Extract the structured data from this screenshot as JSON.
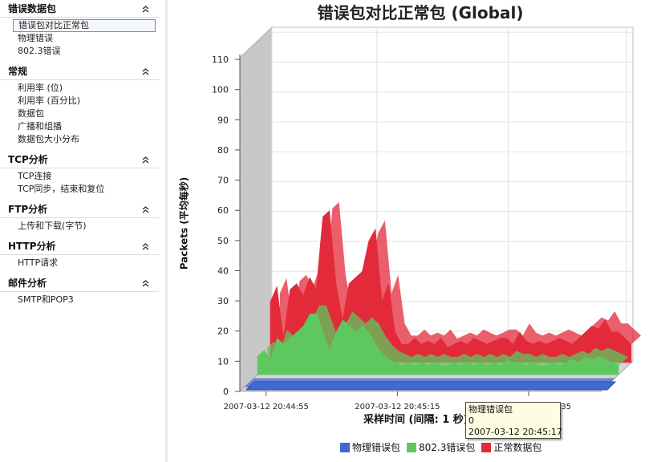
{
  "sidebar": {
    "sections": [
      {
        "title": "错误数据包",
        "items": [
          "错误包对比正常包",
          "物理错误",
          "802.3错误"
        ],
        "selected": 0
      },
      {
        "title": "常规",
        "items": [
          "利用率 (位)",
          "利用率 (百分比)",
          "数据包",
          "广播和组播",
          "数据包大小分布"
        ]
      },
      {
        "title": "TCP分析",
        "items": [
          "TCP连接",
          "TCP同步，结束和复位"
        ]
      },
      {
        "title": "FTP分析",
        "items": [
          "上传和下载(字节)"
        ]
      },
      {
        "title": "HTTP分析",
        "items": [
          "HTTP请求"
        ]
      },
      {
        "title": "邮件分析",
        "items": [
          "SMTP和POP3"
        ]
      }
    ]
  },
  "chart": {
    "title": "错误包对比正常包 (Global)",
    "ylabel": "Packets (平均每秒)",
    "xlabel": "采样时间 (间隔: 1 秒)",
    "legend": [
      "物理错误包",
      "802.3错误包",
      "正常数据包"
    ],
    "tooltip": {
      "series": "物理错误包",
      "value": "0",
      "time": "2007-03-12 20:45:17"
    }
  },
  "colors": {
    "physical": "#4169d2",
    "err8023": "#5ec85e",
    "normal": "#e32a3a",
    "wall": "#c8c8c8",
    "grid": "#c8c8c8"
  },
  "chart_data": {
    "type": "area",
    "title": "错误包对比正常包 (Global)",
    "ylabel": "Packets (平均每秒)",
    "xlabel": "采样时间 (间隔: 1 秒)",
    "ylim": [
      0,
      110
    ],
    "yticks": [
      0,
      10,
      20,
      30,
      40,
      50,
      60,
      70,
      80,
      90,
      100,
      110
    ],
    "x_tick_labels": [
      "2007-03-12 20:44:55",
      "2007-03-12 20:45:15",
      "2007-03-12 20:45:35"
    ],
    "x_tick_index": [
      4,
      24,
      44
    ],
    "grid": true,
    "legend_position": "bottom",
    "series": [
      {
        "name": "物理错误包",
        "values": [
          0,
          0,
          0,
          0,
          0,
          0,
          0,
          0,
          0,
          0,
          0,
          0,
          0,
          0,
          0,
          0,
          0,
          0,
          0,
          0,
          0,
          0,
          0,
          0,
          0,
          0,
          0,
          0,
          0,
          0,
          0,
          0,
          0,
          0,
          0,
          0,
          0,
          0,
          0,
          0,
          0,
          0,
          0,
          0,
          0,
          0,
          0,
          0,
          0,
          0,
          0,
          0,
          0,
          0,
          0,
          0
        ]
      },
      {
        "name": "802.3错误包",
        "values": [
          6,
          8,
          5,
          12,
          10,
          12,
          14,
          16,
          20,
          20,
          14,
          8,
          14,
          18,
          16,
          14,
          16,
          14,
          10,
          7,
          5,
          4,
          3,
          4,
          3,
          4,
          3,
          4,
          3,
          3,
          4,
          3,
          4,
          3,
          4,
          3,
          4,
          3,
          5,
          4,
          4,
          3,
          4,
          3,
          3,
          4,
          3,
          4,
          5,
          4,
          6,
          5,
          6,
          5,
          4,
          3
        ]
      },
      {
        "name": "正常数据包",
        "values": [
          20,
          25,
          8,
          24,
          26,
          22,
          28,
          24,
          48,
          50,
          26,
          14,
          26,
          28,
          30,
          40,
          44,
          20,
          26,
          10,
          6,
          6,
          8,
          6,
          7,
          6,
          8,
          5,
          6,
          7,
          6,
          8,
          7,
          6,
          7,
          8,
          8,
          6,
          10,
          7,
          6,
          7,
          6,
          7,
          8,
          7,
          6,
          8,
          10,
          12,
          11,
          14,
          10,
          10,
          8,
          6
        ]
      }
    ]
  }
}
